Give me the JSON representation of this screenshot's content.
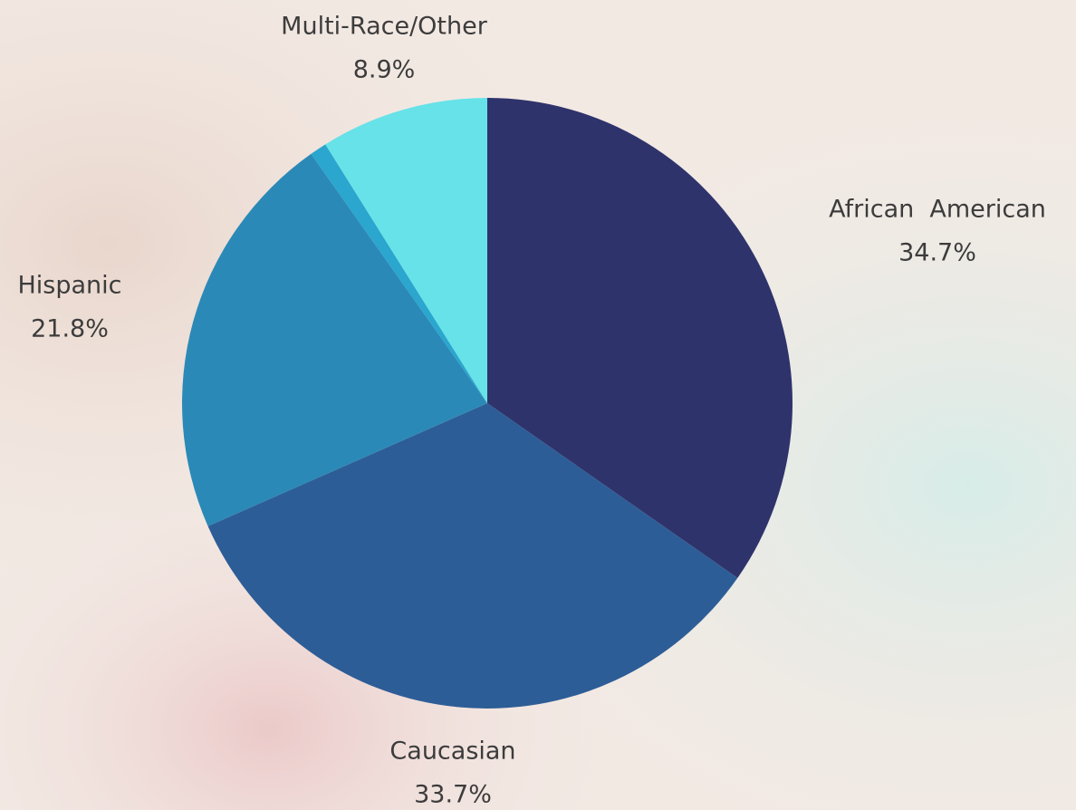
{
  "chart_data": {
    "type": "pie",
    "categories": [
      "African  American",
      "Caucasian",
      "Hispanic",
      null,
      "Multi-Race/Other"
    ],
    "values": [
      34.7,
      33.7,
      21.8,
      0.9,
      8.9
    ],
    "value_labels": [
      "34.7%",
      "33.7%",
      "21.8%",
      null,
      "8.9%"
    ],
    "colors": [
      "#2f336b",
      "#2d5d96",
      "#2b89b7",
      "#2aa6cf",
      "#66e2e8"
    ]
  }
}
